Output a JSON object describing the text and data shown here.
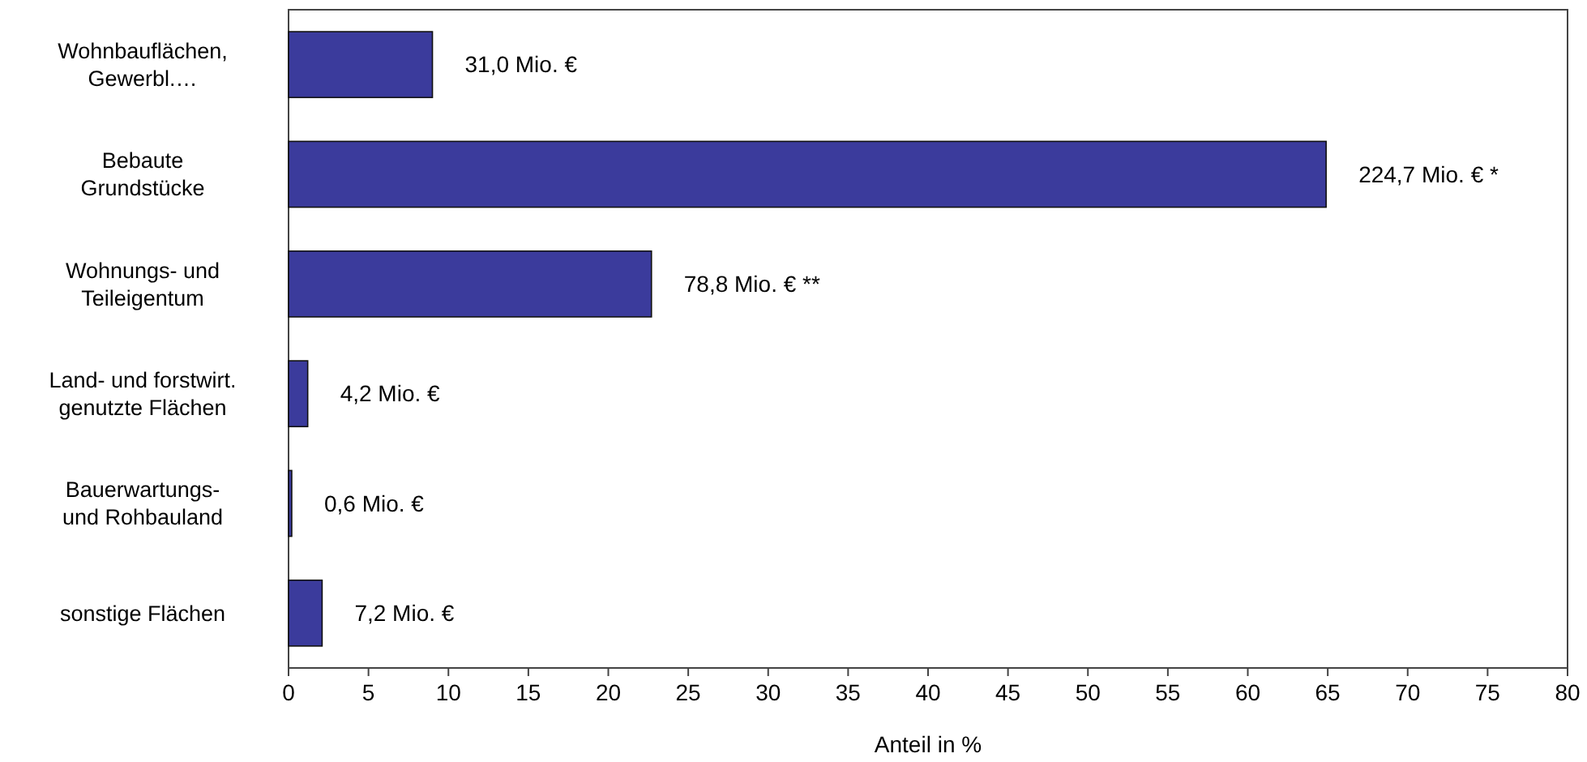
{
  "chart_data": {
    "type": "bar",
    "orientation": "horizontal",
    "xlabel": "Anteil in %",
    "categories": [
      "Wohnbauflächen,\nGewerbl.…",
      "Bebaute\nGrundstücke",
      "Wohnungs- und\nTeileigentum",
      "Land- und forstwirt.\ngenutzte Flächen",
      "Bauerwartungs-\nund Rohbauland",
      "sonstige Flächen"
    ],
    "values": [
      9.0,
      64.9,
      22.7,
      1.2,
      0.2,
      2.1
    ],
    "annotations": [
      {
        "text": "31,0 Mio. €",
        "x": 9.0,
        "y": "Wohnbauflächen,\nGewerbl.…"
      },
      {
        "text": "224,7 Mio. € *",
        "x": 64.9,
        "y": "Bebaute\nGrundstücke"
      },
      {
        "text": "78,8 Mio. € **",
        "x": 22.7,
        "y": "Wohnungs- und\nTeileigentum"
      },
      {
        "text": "4,2 Mio. €",
        "x": 1.2,
        "y": "Land- und forstwirt.\ngenutzte Flächen"
      },
      {
        "text": "0,6 Mio. €",
        "x": 0.2,
        "y": "Bauerwartungs-\nund Rohbauland"
      },
      {
        "text": "7,2 Mio. €",
        "x": 2.1,
        "y": "sonstige Flächen"
      }
    ],
    "color": "#3b3b9c",
    "xlim": [
      0,
      80
    ],
    "xticks": [
      0,
      5,
      10,
      15,
      20,
      25,
      30,
      35,
      40,
      45,
      50,
      55,
      60,
      65,
      70,
      75,
      80
    ],
    "grid": false
  }
}
